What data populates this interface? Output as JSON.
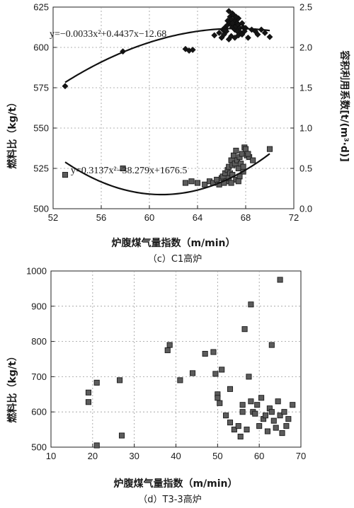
{
  "chart_data": [
    {
      "type": "scatter",
      "caption": "（c）C1高炉",
      "xlabel": "炉腹煤气量指数（m/min）",
      "ylabel": "燃料比（kg/t）",
      "y2label": "容积利用系数[t/(m³·d)]",
      "xlim": [
        52,
        72
      ],
      "ylim": [
        500,
        625
      ],
      "y2lim": [
        0,
        2.5
      ],
      "xticks": [
        "52",
        "56",
        "60",
        "64",
        "68",
        "72"
      ],
      "yticks": [
        "500",
        "525",
        "550",
        "575",
        "600",
        "625"
      ],
      "y2ticks": [
        "0.0",
        "0.5",
        "1.0",
        "1.5",
        "2.0",
        "2.5"
      ],
      "grid": "dashed",
      "series": [
        {
          "axis": "y2",
          "marker": "diamond",
          "x": [
            53,
            57.8,
            63,
            63.3,
            63.6,
            65.4,
            65.8,
            66,
            66.1,
            66.2,
            66.3,
            66.4,
            66.5,
            66.5,
            66.6,
            66.7,
            66.7,
            66.8,
            66.8,
            66.9,
            66.9,
            67,
            67,
            67.1,
            67.1,
            67.2,
            67.2,
            67.3,
            67.3,
            67.4,
            67.4,
            67.5,
            67.6,
            67.7,
            67.8,
            67.9,
            68,
            68.2,
            68.5,
            68.8,
            69,
            69.3,
            69.6,
            70,
            66.6,
            66.8,
            67.1,
            67.4,
            67.7,
            66.3,
            66.9,
            67.2
          ],
          "values": [
            1.52,
            1.95,
            1.98,
            1.96,
            1.97,
            2.15,
            2.18,
            2.12,
            2.22,
            2.16,
            2.25,
            2.2,
            2.33,
            2.28,
            2.45,
            2.3,
            2.38,
            2.28,
            2.35,
            2.42,
            2.25,
            2.3,
            2.4,
            2.22,
            2.32,
            2.36,
            2.26,
            2.3,
            2.2,
            2.28,
            2.36,
            2.24,
            2.18,
            2.3,
            2.25,
            2.2,
            2.24,
            2.12,
            2.22,
            2.2,
            2.16,
            2.22,
            2.18,
            2.13,
            2.1,
            2.14,
            2.12,
            2.15,
            2.16,
            2.22,
            2.3,
            2.38
          ]
        },
        {
          "axis": "y",
          "marker": "square",
          "x": [
            53,
            57.8,
            63,
            63.5,
            64,
            64.6,
            65,
            65.3,
            65.6,
            65.8,
            66,
            66.1,
            66.3,
            66.4,
            66.5,
            66.6,
            66.7,
            66.8,
            66.9,
            67,
            67.1,
            67.2,
            67.3,
            67.4,
            67.5,
            67.6,
            67.7,
            67.8,
            67.9,
            68,
            68.1,
            68.3,
            68.6,
            70,
            66.6,
            66.9,
            67.2,
            67.5,
            67.8,
            68.2,
            66.2,
            66.8,
            67.4
          ],
          "values": [
            521,
            525,
            516,
            517,
            516,
            515,
            517,
            516,
            518,
            515,
            519,
            520,
            522,
            517,
            524,
            526,
            522,
            530,
            527,
            533,
            528,
            536,
            530,
            525,
            532,
            528,
            534,
            523,
            538,
            537,
            533,
            532,
            530,
            537,
            519,
            521,
            518,
            520,
            526,
            534,
            516,
            516,
            517
          ]
        }
      ],
      "trendlines": [
        {
          "axis": "y2",
          "equation": "y=−0.0033x²+0.4437x−12.68",
          "coefficients": [
            -0.0033,
            0.4437,
            -12.68
          ],
          "x_range": [
            53,
            70
          ]
        },
        {
          "axis": "y",
          "equation": "y=0.3137x²−38.279x+1676.5",
          "coefficients": [
            0.3137,
            -38.279,
            1676.5
          ],
          "x_range": [
            53,
            70
          ]
        }
      ]
    },
    {
      "type": "scatter",
      "caption": "（d）T3-3高炉",
      "xlabel": "炉腹煤气量指数（m/min）",
      "ylabel": "燃料比（kg/t）",
      "xlim": [
        10,
        70
      ],
      "ylim": [
        500,
        1000
      ],
      "xticks": [
        "10",
        "20",
        "30",
        "40",
        "50",
        "60",
        "70"
      ],
      "yticks": [
        "500",
        "600",
        "700",
        "800",
        "900",
        "1000"
      ],
      "grid": "dashed",
      "series": [
        {
          "axis": "y",
          "marker": "square",
          "x": [
            19,
            19,
            21,
            21,
            26.5,
            27,
            38,
            38.5,
            41,
            44,
            47,
            49,
            49.5,
            50,
            50.5,
            51,
            52,
            53,
            54,
            55,
            55.5,
            56,
            56.5,
            57,
            57.5,
            58,
            58.5,
            59,
            59.5,
            60,
            60.5,
            61,
            61.5,
            62,
            62.5,
            63,
            63.5,
            64,
            64.5,
            65,
            65.5,
            66,
            66.5,
            67,
            68,
            58,
            56,
            53,
            50,
            65,
            63
          ],
          "values": [
            655,
            628,
            683,
            505,
            690,
            533,
            775,
            790,
            690,
            710,
            765,
            770,
            708,
            650,
            625,
            720,
            590,
            570,
            550,
            560,
            530,
            620,
            835,
            550,
            700,
            905,
            600,
            595,
            620,
            560,
            640,
            580,
            590,
            545,
            610,
            600,
            575,
            555,
            630,
            590,
            540,
            600,
            560,
            580,
            620,
            630,
            600,
            665,
            640,
            975,
            790
          ]
        }
      ]
    }
  ]
}
